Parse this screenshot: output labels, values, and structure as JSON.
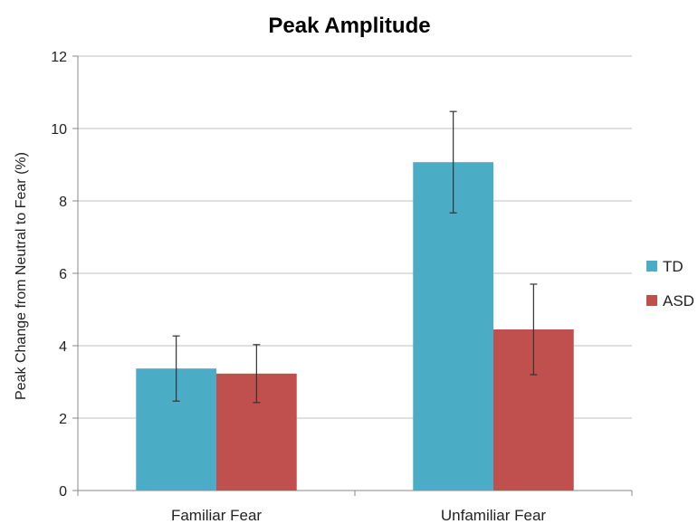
{
  "chart_data": {
    "type": "bar",
    "title": "Peak Amplitude",
    "xlabel": "",
    "ylabel": "Peak Change from Neutral to Fear (%)",
    "categories": [
      "Familiar Fear",
      "Unfamiliar Fear"
    ],
    "series": [
      {
        "name": "TD",
        "color": "#4bacc6",
        "values": [
          3.37,
          9.07
        ],
        "error": [
          0.9,
          1.4
        ]
      },
      {
        "name": "ASD",
        "color": "#c0504d",
        "values": [
          3.23,
          4.45
        ],
        "error": [
          0.8,
          1.25
        ]
      }
    ],
    "ylim": [
      0,
      12
    ],
    "yticks": [
      0,
      2,
      4,
      6,
      8,
      10,
      12
    ],
    "grid": true,
    "legend": "right"
  }
}
